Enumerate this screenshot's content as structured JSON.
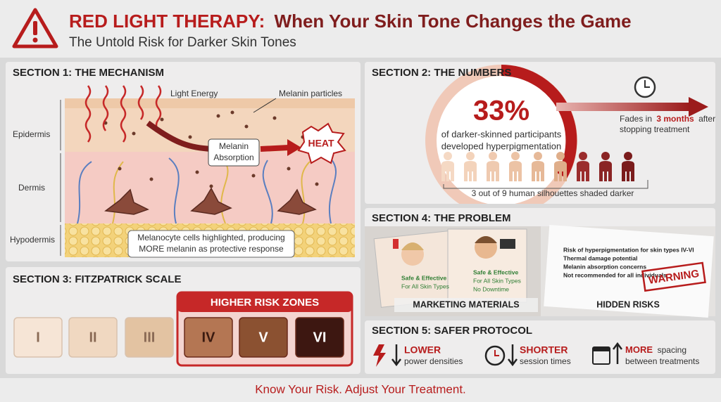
{
  "header": {
    "title_lead": "RED LIGHT THERAPY:",
    "title_rest": "When Your Skin Tone Changes the Game",
    "subtitle": "The Untold Risk for Darker Skin Tones"
  },
  "mechanism": {
    "title": "SECTION 1: THE MECHANISM",
    "light_label": "Light Energy",
    "melanin_label": "Melanin particles",
    "layers": [
      "Epidermis",
      "Dermis",
      "Hypodermis"
    ],
    "absorption_label": [
      "Melanin",
      "Absorption"
    ],
    "heat_label": "HEAT",
    "caption": [
      "Melanocyte cells highlighted, producing",
      "MORE melanin as protective response"
    ]
  },
  "numbers": {
    "title": "SECTION 2: THE NUMBERS",
    "stat": "33%",
    "stat_text": [
      "of darker-skinned participants",
      "developed hyperpigmentation"
    ],
    "fade_prefix": "Fades in",
    "fade_bold": "3 months",
    "fade_suffix": "after",
    "fade_line2": "stopping treatment",
    "silhouette_caption": "3 out of 9 human silhouettes shaded darker"
  },
  "fitzpatrick": {
    "title": "SECTION 3: FITZPATRICK SCALE",
    "risk_label": "HIGHER RISK ZONES",
    "types": [
      "I",
      "II",
      "III",
      "IV",
      "V",
      "VI"
    ]
  },
  "problem": {
    "title": "SECTION 4: THE PROBLEM",
    "marketing_label": "MARKETING MATERIALS",
    "hidden_label": "HIDDEN RISKS",
    "claims": [
      "Safe & Effective",
      "For All Skin Types",
      "No Downtime"
    ],
    "risk_lines": [
      "Risk of hyperpigmentation for skin types IV-VI",
      "Thermal damage potential",
      "Melanin absorption concerns",
      "Not recommended for all individuals"
    ],
    "stamp": "WARNING"
  },
  "protocol": {
    "title": "SECTION 5: SAFER PROTOCOL",
    "items": [
      {
        "bold": "LOWER",
        "text": "power densities"
      },
      {
        "bold": "SHORTER",
        "text": "session times"
      },
      {
        "bold": "MORE",
        "text": "spacing",
        "text2": "between treatments"
      }
    ]
  },
  "footer": {
    "text": "Know Your Risk. Adjust Your Treatment."
  }
}
